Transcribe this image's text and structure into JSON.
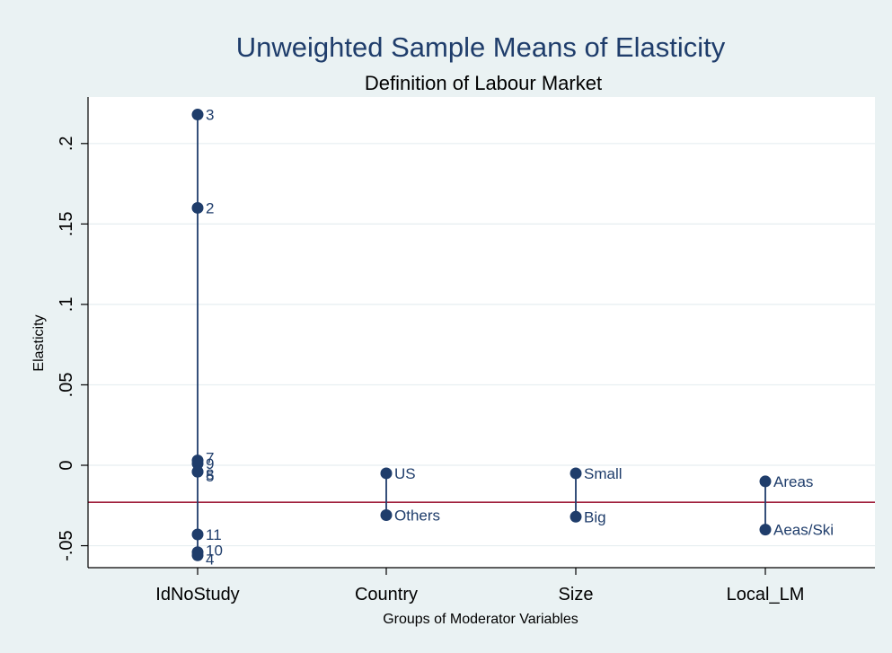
{
  "chart_data": {
    "type": "scatter",
    "title": "Unweighted Sample Means of Elasticity",
    "subtitle": "Definition of Labour Market",
    "xlabel": "Groups of Moderator Variables",
    "ylabel": "Elasticity",
    "categories": [
      "IdNoStudy",
      "Country",
      "Size",
      "Local_LM"
    ],
    "ylim": [
      -0.062,
      0.225
    ],
    "yticks": [
      -0.05,
      0,
      0.05,
      0.1,
      0.15,
      0.2
    ],
    "ytick_labels": [
      "-.05",
      "0",
      ".05",
      ".1",
      ".15",
      ".2"
    ],
    "grid": true,
    "reference_line": {
      "y": -0.023,
      "color": "#a0203c"
    },
    "marker_color": "#1f3d6b",
    "groups": [
      {
        "category": "IdNoStudy",
        "points": [
          {
            "label": "3",
            "y": 0.218
          },
          {
            "label": "2",
            "y": 0.16
          },
          {
            "label": "7",
            "y": 0.003
          },
          {
            "label": "9",
            "y": 0.001
          },
          {
            "label": "8",
            "y": -0.004
          },
          {
            "label": "5",
            "y": -0.004
          },
          {
            "label": "11",
            "y": -0.043
          },
          {
            "label": "10",
            "y": -0.054
          },
          {
            "label": "4",
            "y": -0.056
          }
        ]
      },
      {
        "category": "Country",
        "points": [
          {
            "label": "US",
            "y": -0.005
          },
          {
            "label": "Others",
            "y": -0.031
          }
        ]
      },
      {
        "category": "Size",
        "points": [
          {
            "label": "Small",
            "y": -0.005
          },
          {
            "label": "Big",
            "y": -0.032
          }
        ]
      },
      {
        "category": "Local_LM",
        "points": [
          {
            "label": "Areas",
            "y": -0.01
          },
          {
            "label": "Aeas/Ski",
            "y": -0.04
          }
        ]
      }
    ]
  }
}
